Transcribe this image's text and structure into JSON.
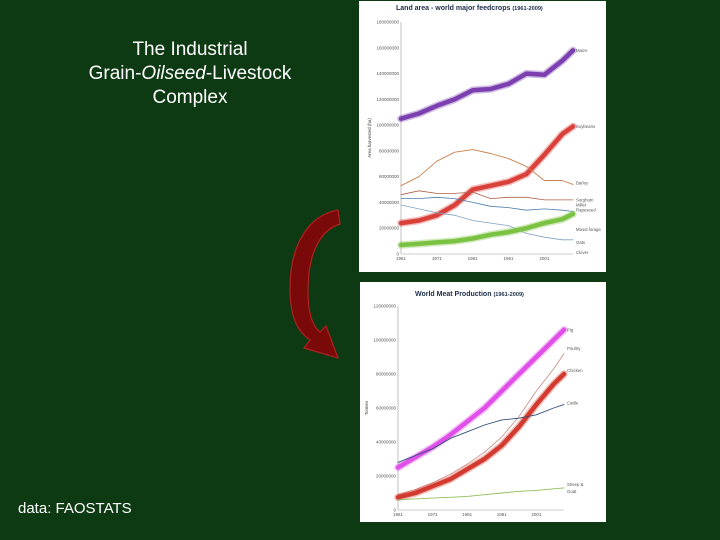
{
  "slide": {
    "title_line1": "The Industrial",
    "title_line2_pre": "Grain-",
    "title_line2_em": "Oilseed",
    "title_line2_post": "-Livestock",
    "title_line3": "Complex",
    "source": "data: FAOSTATS"
  },
  "chart_data": [
    {
      "type": "line",
      "title": "Land area - world major feedcrops",
      "title_range": "(1961-2009)",
      "ylabel": "Area harvested (ha)",
      "xlim": [
        1961,
        2009
      ],
      "ylim": [
        0,
        180000000
      ],
      "x_ticks": [
        "1961",
        "1971",
        "1981",
        "1991",
        "2001"
      ],
      "y_ticks": [
        "0",
        "20000000",
        "40000000",
        "60000000",
        "80000000",
        "100000000",
        "120000000",
        "140000000",
        "160000000",
        "180000000"
      ],
      "series": [
        {
          "name": "Maize",
          "color": "#7b3fb0",
          "width": 4.5,
          "x": [
            1961,
            1966,
            1971,
            1976,
            1981,
            1986,
            1991,
            1996,
            2001,
            2006,
            2009
          ],
          "values": [
            105000000,
            109000000,
            115000000,
            120000000,
            127000000,
            128000000,
            132000000,
            140000000,
            139000000,
            150000000,
            158000000
          ]
        },
        {
          "name": "Soybeans",
          "color": "#d9403a",
          "width": 4.5,
          "x": [
            1961,
            1966,
            1971,
            1976,
            1981,
            1986,
            1991,
            1996,
            2001,
            2006,
            2009
          ],
          "values": [
            24000000,
            26000000,
            30000000,
            38000000,
            50000000,
            53000000,
            56000000,
            62000000,
            77000000,
            93000000,
            99000000
          ]
        },
        {
          "name": "Barley",
          "color": "#c8804f",
          "width": 0.9,
          "x": [
            1961,
            1966,
            1971,
            1976,
            1981,
            1986,
            1991,
            1996,
            2001,
            2006,
            2009
          ],
          "values": [
            53000000,
            60000000,
            72000000,
            79000000,
            81000000,
            78000000,
            74000000,
            68000000,
            57000000,
            57000000,
            54000000
          ]
        },
        {
          "name": "Sorghum",
          "color": "#b0604a",
          "width": 0.8,
          "x": [
            1961,
            1966,
            1971,
            1976,
            1981,
            1986,
            1991,
            1996,
            2001,
            2006,
            2009
          ],
          "values": [
            46000000,
            49000000,
            47000000,
            47000000,
            48000000,
            43000000,
            44000000,
            44000000,
            42000000,
            42000000,
            42000000
          ]
        },
        {
          "name": "Millet",
          "color": "#4a7ea8",
          "width": 0.8,
          "x": [
            1961,
            1966,
            1971,
            1976,
            1981,
            1986,
            1991,
            1996,
            2001,
            2006,
            2009
          ],
          "values": [
            43000000,
            43000000,
            44000000,
            43000000,
            40000000,
            37000000,
            36000000,
            34000000,
            35000000,
            34000000,
            33000000
          ]
        },
        {
          "name": "Oats",
          "color": "#7fa3c4",
          "width": 0.8,
          "x": [
            1961,
            1966,
            1971,
            1976,
            1981,
            1986,
            1991,
            1996,
            2001,
            2006,
            2009
          ],
          "values": [
            38000000,
            35000000,
            32000000,
            30000000,
            26000000,
            24000000,
            22000000,
            16000000,
            13000000,
            11000000,
            11000000
          ]
        },
        {
          "name": "Rapeseed",
          "color": "#7cc242",
          "width": 4.5,
          "x": [
            1961,
            1966,
            1971,
            1976,
            1981,
            1986,
            1991,
            1996,
            2001,
            2006,
            2009
          ],
          "values": [
            7000000,
            8000000,
            9000000,
            10000000,
            12000000,
            15000000,
            17000000,
            20000000,
            24000000,
            27000000,
            31000000
          ]
        }
      ],
      "legend_labels": [
        {
          "text": "Maize",
          "y": 158000000
        },
        {
          "text": "Soybeans",
          "y": 99000000
        },
        {
          "text": "Barley",
          "y": 55000000
        },
        {
          "text": "Sorghum",
          "y": 42000000
        },
        {
          "text": "Millet",
          "y": 38000000
        },
        {
          "text": "Rapeseed",
          "y": 34000000
        },
        {
          "text": "Mixed forage",
          "y": 19000000
        },
        {
          "text": "Oats",
          "y": 9000000
        },
        {
          "text": "Clover",
          "y": 1000000
        }
      ]
    },
    {
      "type": "line",
      "title": "World Meat Production",
      "title_range": "(1961-2009)",
      "ylabel": "Tonnes",
      "xlim": [
        1961,
        2009
      ],
      "ylim": [
        0,
        120000000
      ],
      "x_ticks": [
        "1961",
        "1971",
        "1981",
        "1991",
        "2001"
      ],
      "y_ticks": [
        "0",
        "20000000",
        "40000000",
        "60000000",
        "80000000",
        "100000000",
        "120000000"
      ],
      "series": [
        {
          "name": "Pig",
          "color": "#e050e8",
          "width": 4.5,
          "x": [
            1961,
            1966,
            1971,
            1976,
            1981,
            1986,
            1991,
            1996,
            2001,
            2006,
            2009
          ],
          "values": [
            25000000,
            31000000,
            37000000,
            44000000,
            52000000,
            60000000,
            70000000,
            80000000,
            90000000,
            100000000,
            106000000
          ]
        },
        {
          "name": "Poultry",
          "color": "#c98a82",
          "width": 0.8,
          "x": [
            1961,
            1966,
            1971,
            1976,
            1981,
            1986,
            1991,
            1996,
            2001,
            2006,
            2009
          ],
          "values": [
            9000000,
            12000000,
            16000000,
            21000000,
            27000000,
            34000000,
            43000000,
            55000000,
            70000000,
            83000000,
            92000000
          ]
        },
        {
          "name": "Chicken",
          "color": "#d33a2f",
          "width": 4.5,
          "x": [
            1961,
            1966,
            1971,
            1976,
            1981,
            1986,
            1991,
            1996,
            2001,
            2006,
            2009
          ],
          "values": [
            7500000,
            10000000,
            14000000,
            18000000,
            24000000,
            30000000,
            38000000,
            49000000,
            62000000,
            74000000,
            80000000
          ]
        },
        {
          "name": "Cattle",
          "color": "#2f4f7a",
          "width": 0.9,
          "x": [
            1961,
            1966,
            1971,
            1976,
            1981,
            1986,
            1991,
            1996,
            2001,
            2006,
            2009
          ],
          "values": [
            28000000,
            32000000,
            36000000,
            42000000,
            46000000,
            50000000,
            53000000,
            54000000,
            56000000,
            60000000,
            62000000
          ]
        },
        {
          "name": "Sheep & Goat",
          "color": "#8fbf5a",
          "width": 0.9,
          "x": [
            1961,
            1966,
            1971,
            1976,
            1981,
            1986,
            1991,
            1996,
            2001,
            2006,
            2009
          ],
          "values": [
            6000000,
            6500000,
            7000000,
            7500000,
            8000000,
            9000000,
            10000000,
            11000000,
            11500000,
            12500000,
            13000000
          ]
        }
      ],
      "legend_labels": [
        {
          "text": "Pig",
          "y": 106000000
        },
        {
          "text": "Poultry",
          "y": 95000000
        },
        {
          "text": "Chicken",
          "y": 82000000
        },
        {
          "text": "Cattle",
          "y": 63000000
        },
        {
          "text": "Sheep &",
          "y": 15000000
        },
        {
          "text": "Goat",
          "y": 11000000
        }
      ]
    }
  ]
}
